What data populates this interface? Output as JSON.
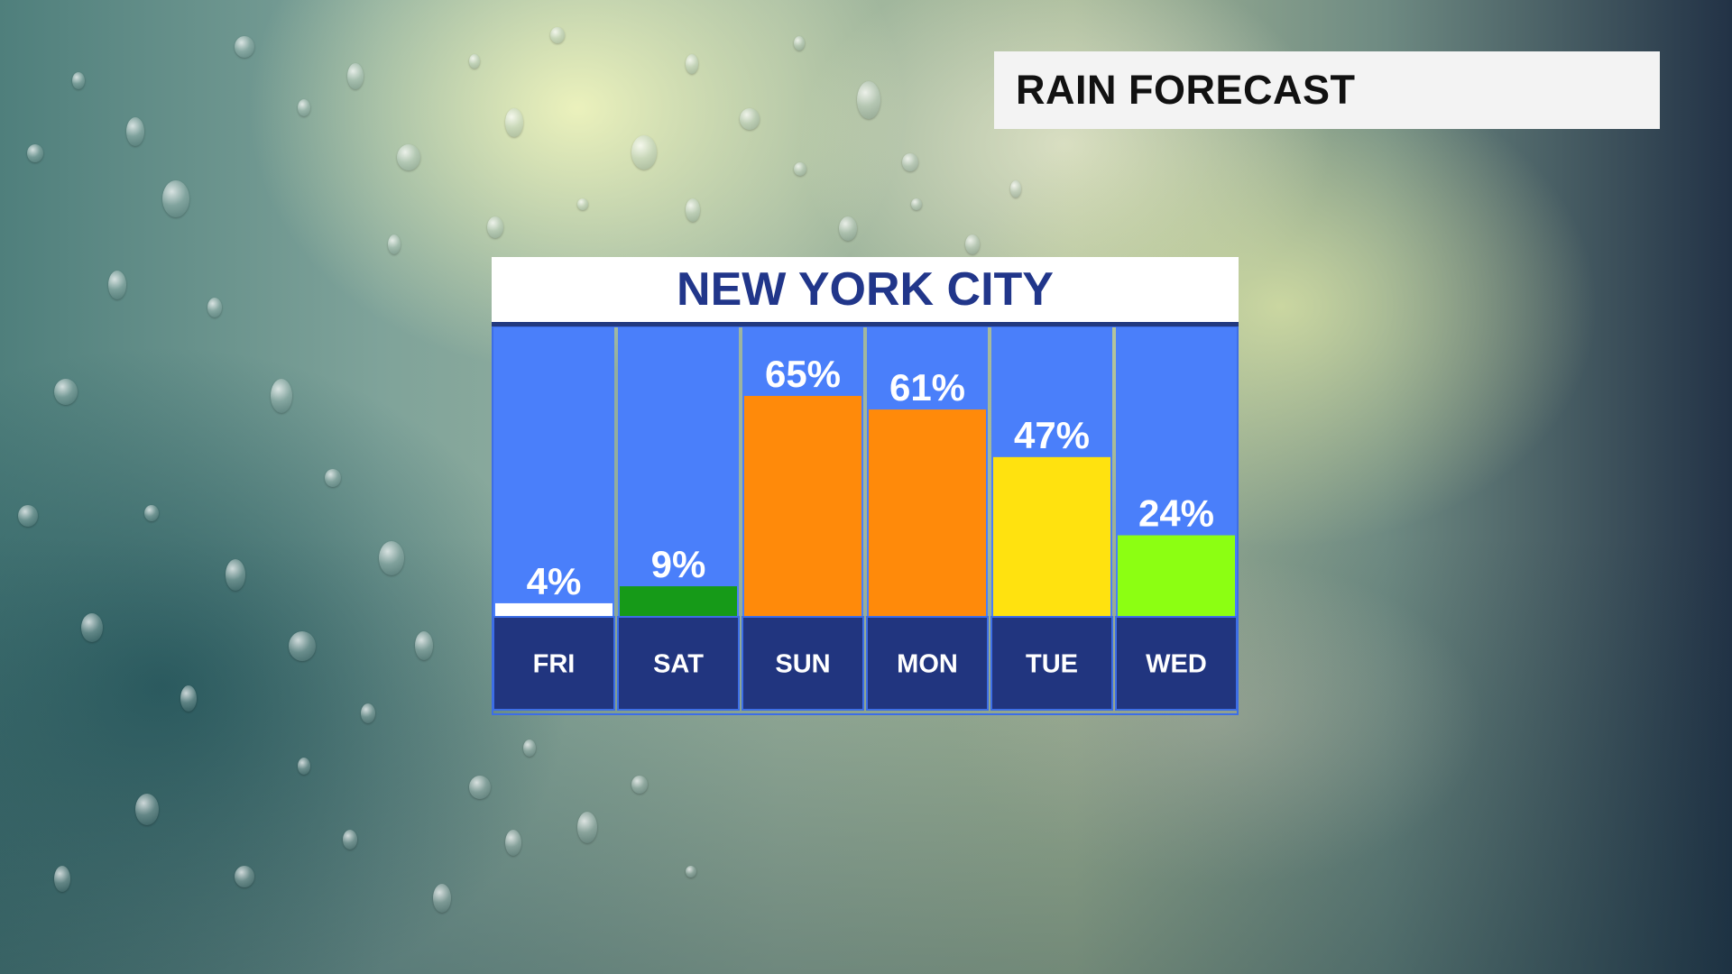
{
  "header": {
    "title": "RAIN FORECAST"
  },
  "chart_data": {
    "type": "bar",
    "title": "NEW YORK CITY",
    "categories": [
      "FRI",
      "SAT",
      "SUN",
      "MON",
      "TUE",
      "WED"
    ],
    "values": [
      4,
      9,
      65,
      61,
      47,
      24
    ],
    "value_suffix": "%",
    "bar_colors": [
      "#ffffff",
      "#169a18",
      "#ff8a0a",
      "#ff8a0a",
      "#ffe20f",
      "#8cff12"
    ],
    "ylim": [
      0,
      100
    ],
    "xlabel": "",
    "ylabel": "",
    "grid": false,
    "legend": "none"
  },
  "colors": {
    "column_background": "#4a7ffa",
    "label_background": "#21357f",
    "city_text": "#21368a"
  }
}
